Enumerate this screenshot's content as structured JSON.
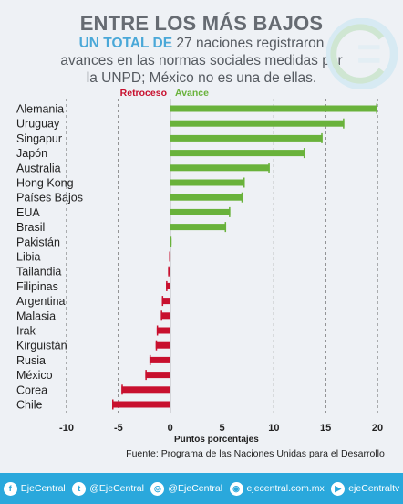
{
  "header": {
    "title": "ENTRE LOS MÁS BAJOS",
    "subtitle_highlight": "UN TOTAL DE",
    "subtitle_rest": " 27 naciones registraron avances en las normas sociales medidas por la UNPD; México no es una de ellas."
  },
  "chart_data": {
    "type": "bar",
    "orientation": "horizontal",
    "categories": [
      "Alemania",
      "Uruguay",
      "Singapur",
      "Japón",
      "Australia",
      "Hong Kong",
      "Países Bajos",
      "EUA",
      "Brasil",
      "Pakistán",
      "Libia",
      "Tailandia",
      "Filipinas",
      "Argentina",
      "Malasia",
      "Irak",
      "Kirguistán",
      "Rusia",
      "México",
      "Corea",
      "Chile"
    ],
    "values": [
      20.0,
      16.8,
      14.7,
      13.0,
      9.6,
      7.2,
      7.0,
      5.8,
      5.4,
      0.1,
      -0.1,
      -0.2,
      -0.4,
      -0.8,
      -0.9,
      -1.3,
      -1.4,
      -2.0,
      -2.4,
      -4.7,
      -5.6
    ],
    "xlabel": "Puntos porcentajes",
    "xlim": [
      -10,
      20
    ],
    "xticks": [
      -10,
      -5,
      0,
      5,
      10,
      15,
      20
    ],
    "xtick_labels": [
      "-10",
      "-5",
      "0",
      "5",
      "10",
      "15",
      "20"
    ],
    "legend": [
      {
        "label": "Retroceso",
        "color": "#c8102e"
      },
      {
        "label": "Avance",
        "color": "#69b23b"
      }
    ],
    "grid": "dashed vertical",
    "colors": {
      "positive": "#69b23b",
      "negative": "#c8102e"
    }
  },
  "source": "Fuente: Programa de las Naciones Unidas para el Desarrollo",
  "footer": {
    "items": [
      {
        "icon": "facebook-icon",
        "glyph": "f",
        "label": "EjeCentral"
      },
      {
        "icon": "twitter-icon",
        "glyph": "t",
        "label": "@EjeCentral"
      },
      {
        "icon": "instagram-icon",
        "glyph": "◎",
        "label": "@EjeCentral"
      },
      {
        "icon": "web-icon",
        "glyph": "◉",
        "label": "ejecentral.com.mx"
      },
      {
        "icon": "youtube-icon",
        "glyph": "▶",
        "label": "ejeCentraltv"
      }
    ]
  }
}
